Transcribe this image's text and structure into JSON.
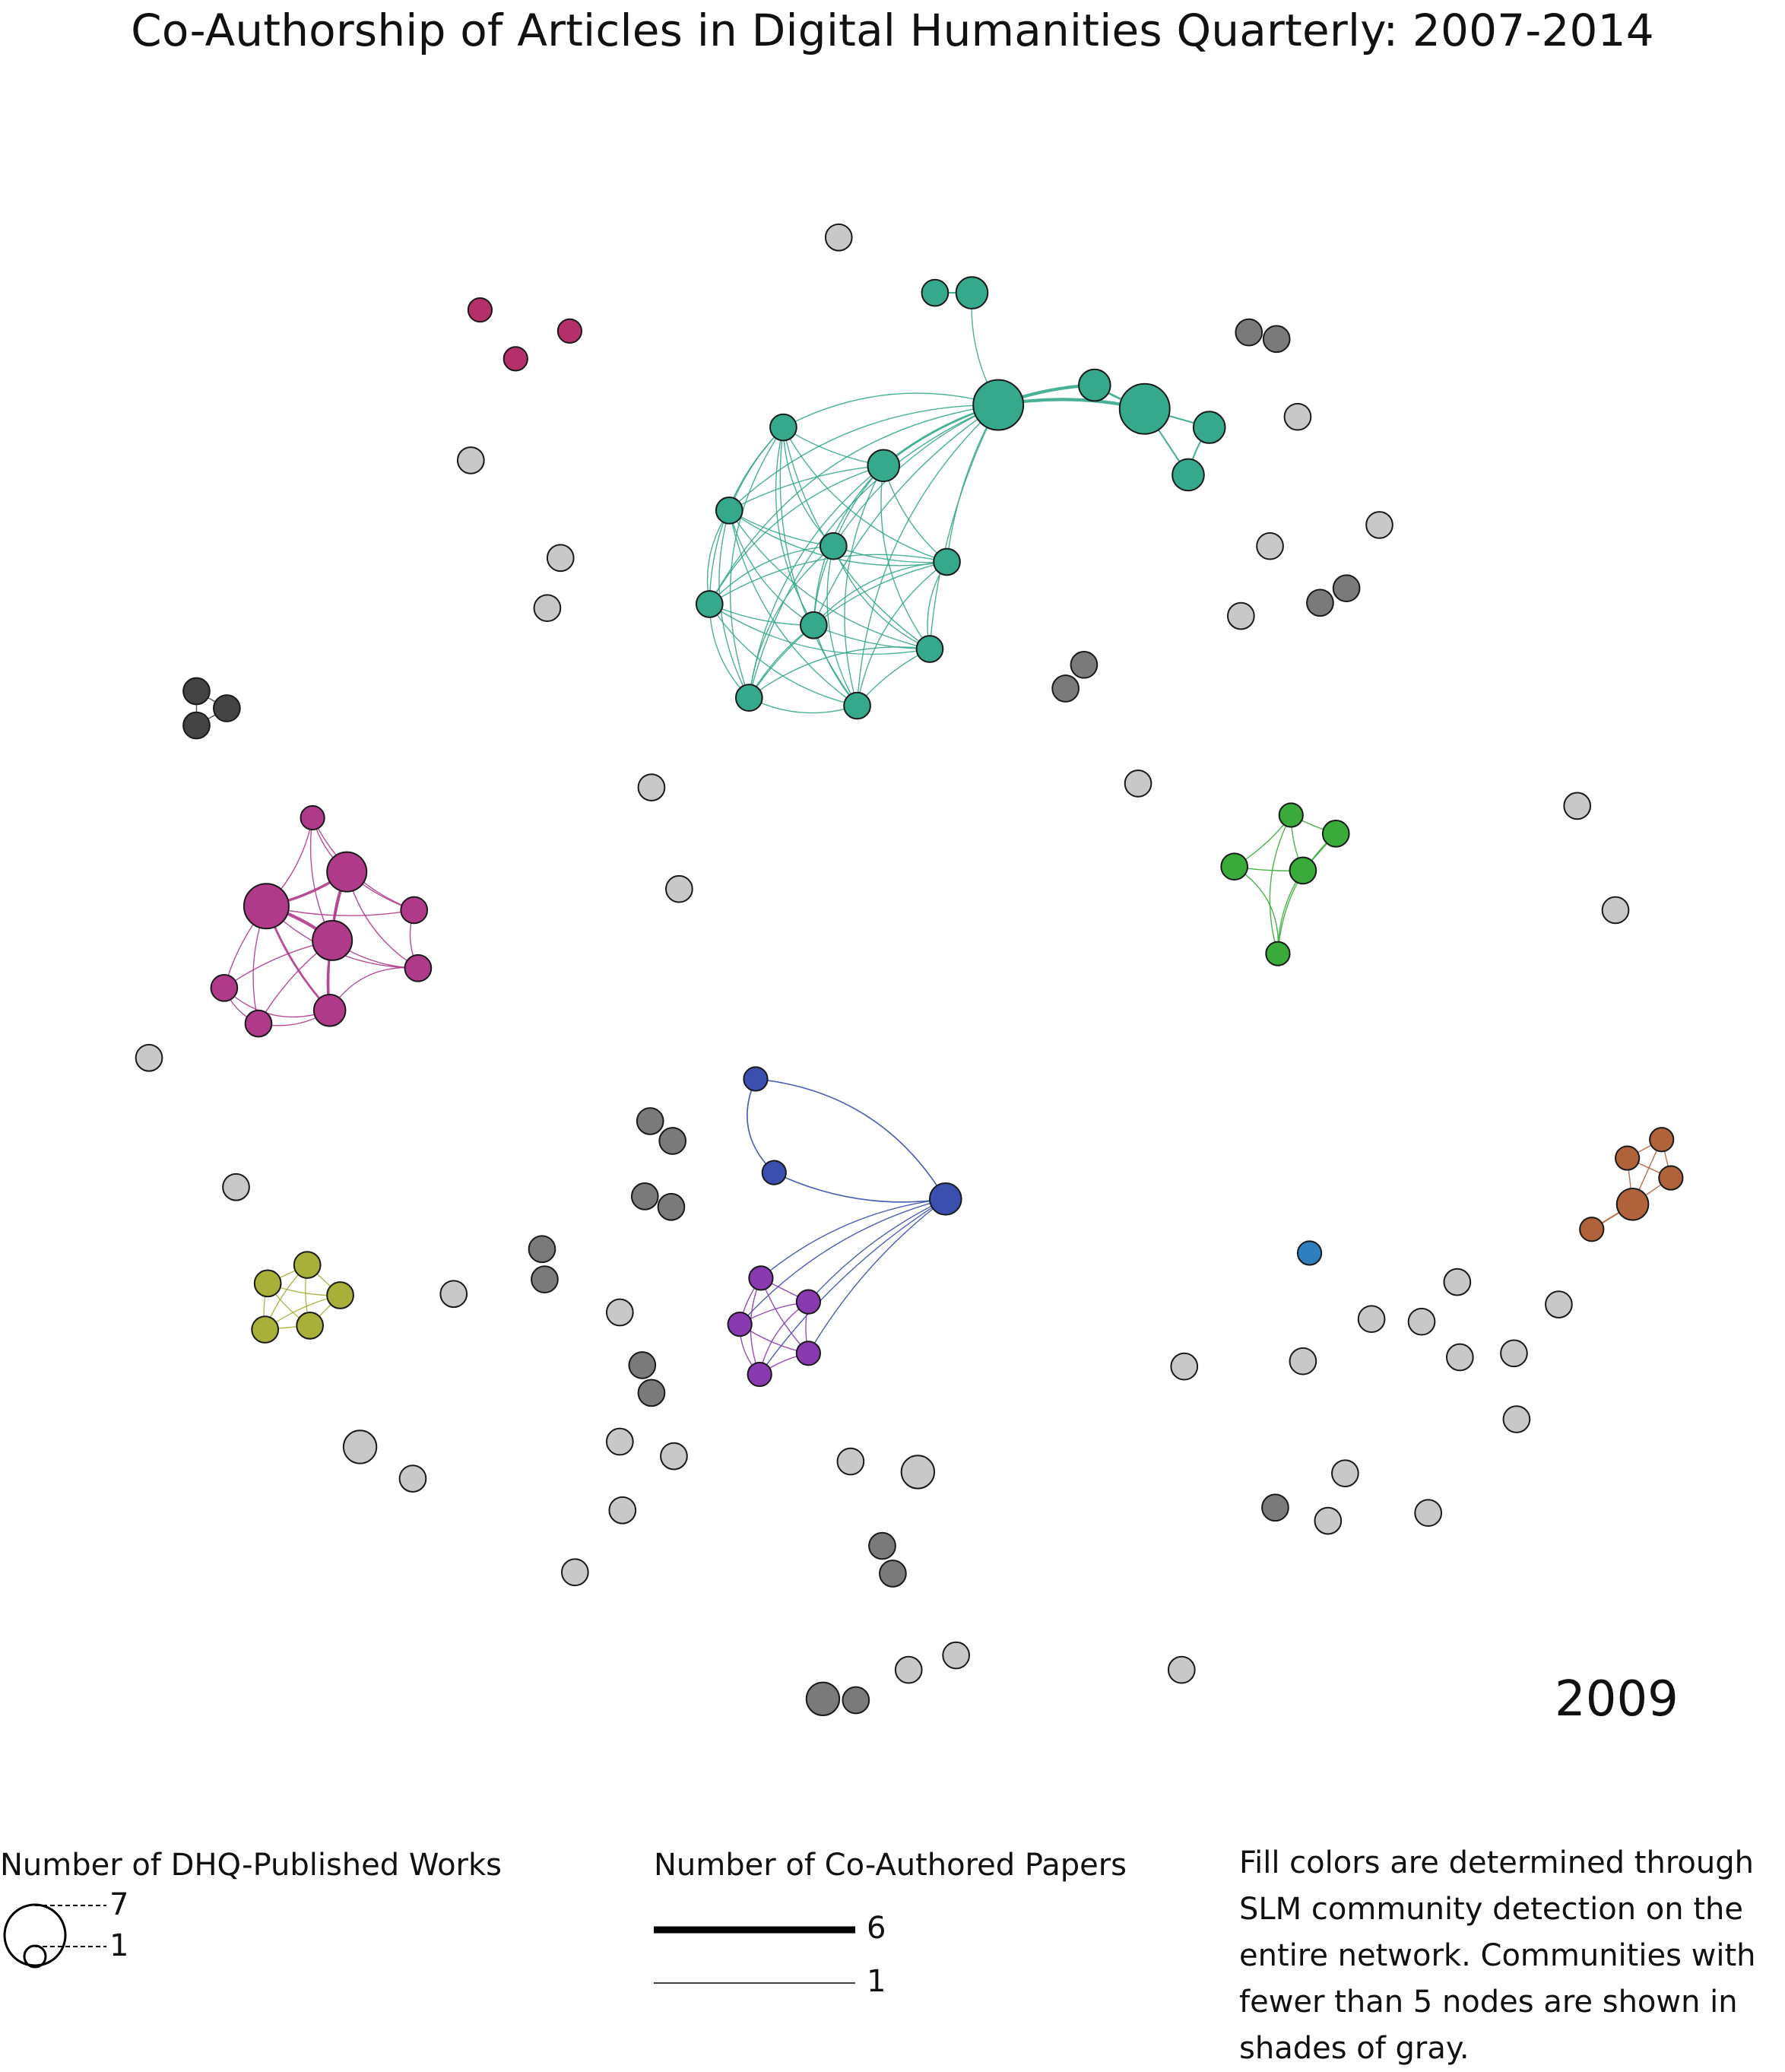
{
  "title": "Co-Authorship of Articles in Digital Humanities Quarterly: 2007-2014",
  "year": "2009",
  "legend": {
    "node_size_title": "Number of DHQ-Published Works",
    "node_size_max": "7",
    "node_size_min": "1",
    "edge_width_title": "Number of Co-Authored Papers",
    "edge_width_max": "6",
    "edge_width_min": "1",
    "note": "Fill colors are determined through SLM community detection on the entire network. Communities with fewer than 5 nodes are shown in shades of gray."
  },
  "colors": {
    "teal": "#36a88c",
    "magenta": "#b03a8a",
    "crimson": "#b3306a",
    "green": "#3aaa3a",
    "blue": "#3a4fae",
    "purple": "#8a3ab0",
    "olive": "#a8b03a",
    "orange": "#b0623a",
    "steel_blue": "#2f7fbf",
    "light_gray": "#c8c8c8",
    "mid_gray": "#7a7a7a",
    "dark_gray": "#444444"
  }
}
